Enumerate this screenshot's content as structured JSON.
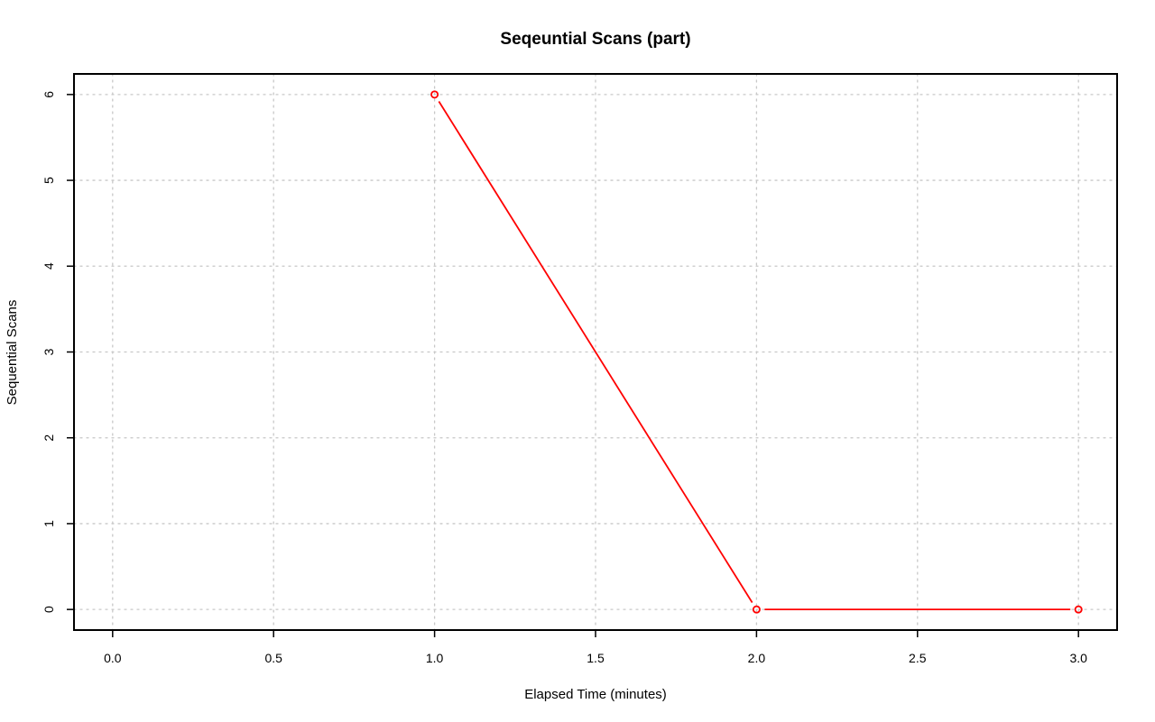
{
  "chart_data": {
    "type": "line",
    "title": "Seqeuntial Scans (part)",
    "xlabel": "Elapsed Time (minutes)",
    "ylabel": "Sequential Scans",
    "xlim": [
      -0.12,
      3.12
    ],
    "ylim": [
      -0.24,
      6.24
    ],
    "x_ticks": [
      0.0,
      0.5,
      1.0,
      1.5,
      2.0,
      2.5,
      3.0
    ],
    "x_tick_labels": [
      "0.0",
      "0.5",
      "1.0",
      "1.5",
      "2.0",
      "2.5",
      "3.0"
    ],
    "y_ticks": [
      0,
      1,
      2,
      3,
      4,
      5,
      6
    ],
    "y_tick_labels": [
      "0",
      "1",
      "2",
      "3",
      "4",
      "5",
      "6"
    ],
    "grid": true,
    "series": [
      {
        "name": "Sequential Scans",
        "color": "#ff0000",
        "marker": "open-circle",
        "x": [
          1.0,
          2.0,
          3.0
        ],
        "y": [
          6,
          0,
          0
        ]
      }
    ]
  }
}
